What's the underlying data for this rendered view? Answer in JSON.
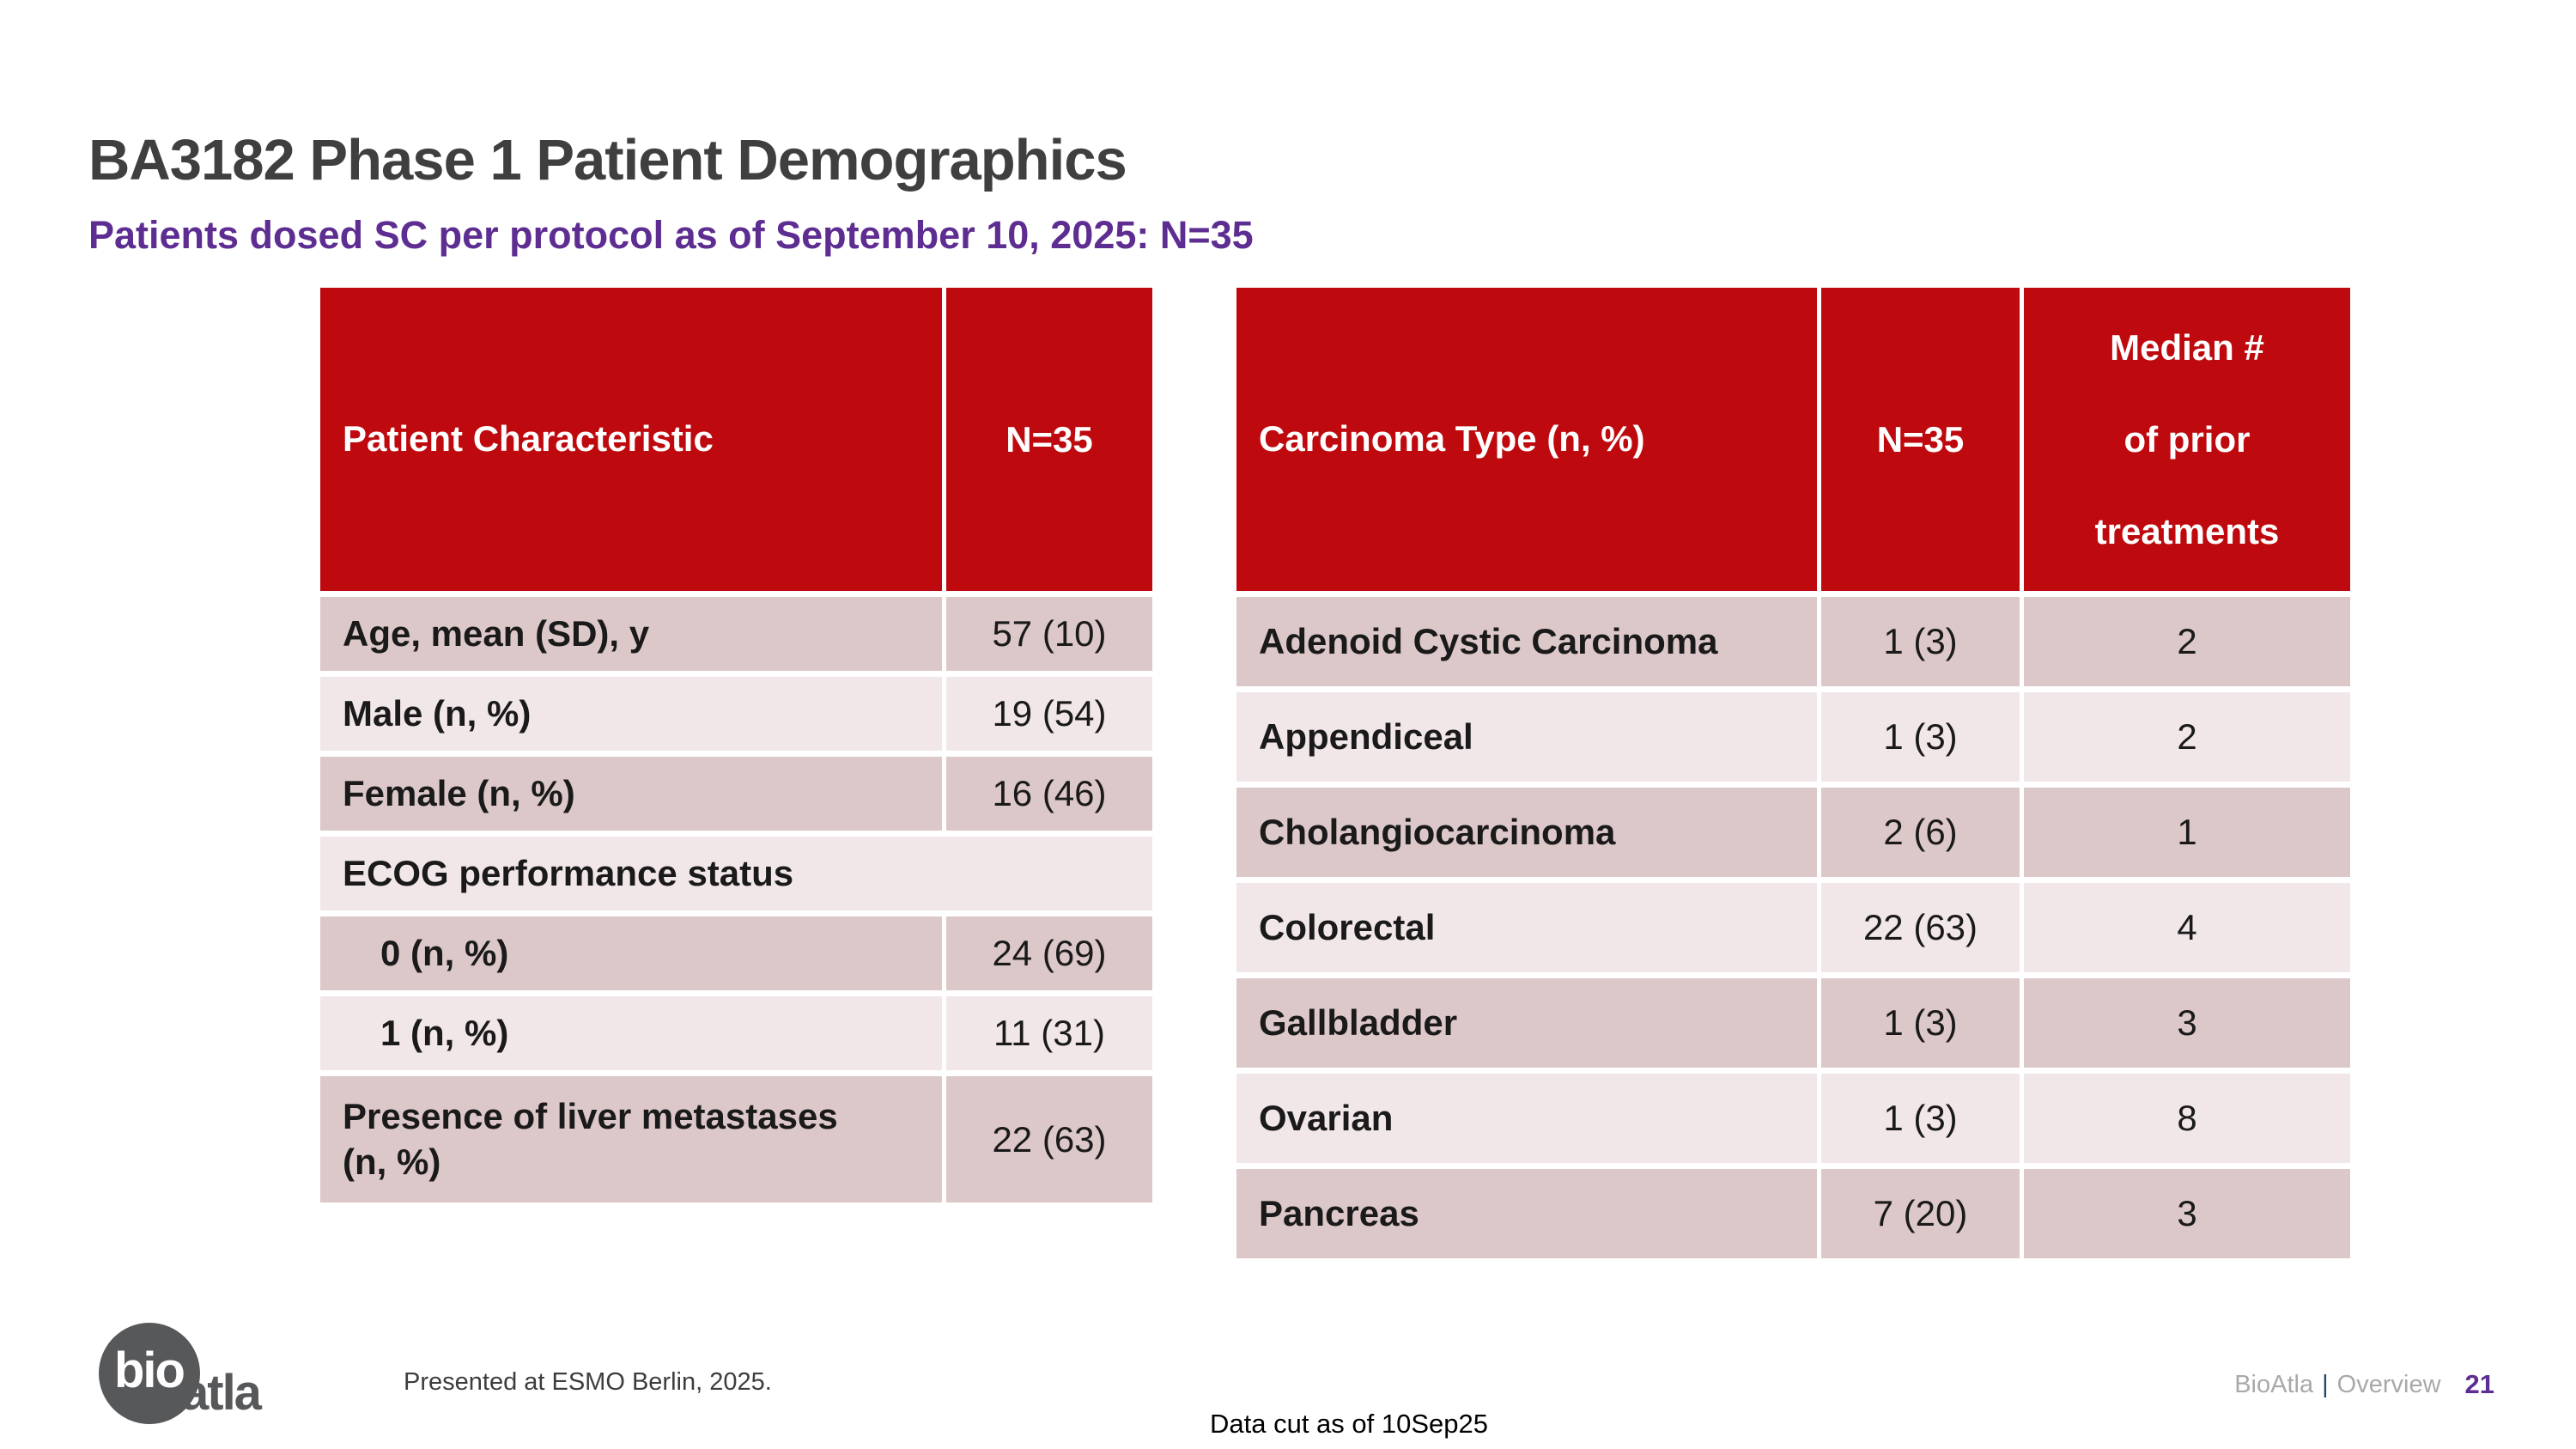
{
  "slide": {
    "title": "BA3182 Phase 1 Patient Demographics",
    "subtitle": "Patients dosed SC per protocol as of September 10, 2025: N=35"
  },
  "colors": {
    "header_red": "#be0a0e",
    "row_dark": "#ddc8c9",
    "row_light": "#f2e7e8",
    "title_gray": "#3f3f3f",
    "subtitle_purple": "#5e2d91",
    "footer_gray": "#a9a9a9",
    "pipe_blue": "#21486b",
    "page_purple": "#5e2d91",
    "logo_gray": "#57585a"
  },
  "left_table": {
    "headers": [
      "Patient Characteristic",
      "N=35"
    ],
    "rows": [
      {
        "label": "Age, mean (SD), y",
        "value": "57 (10)"
      },
      {
        "label": "Male (n, %)",
        "value": "19 (54)"
      },
      {
        "label": "Female (n, %)",
        "value": "16 (46)"
      },
      {
        "label": "ECOG performance status",
        "value": ""
      },
      {
        "label": "0 (n, %)",
        "value": "24 (69)"
      },
      {
        "label": "1 (n, %)",
        "value": "11 (31)"
      },
      {
        "label": "Presence of liver metastases\n(n, %)",
        "value": "22 (63)"
      }
    ]
  },
  "right_table": {
    "headers": [
      "Carcinoma Type (n, %)",
      "N=35",
      "Median #\nof prior\ntreatments"
    ],
    "rows": [
      {
        "type": "Adenoid Cystic Carcinoma",
        "n_pct": "1 (3)",
        "median_prior": "2"
      },
      {
        "type": "Appendiceal",
        "n_pct": "1 (3)",
        "median_prior": "2"
      },
      {
        "type": "Cholangiocarcinoma",
        "n_pct": "2 (6)",
        "median_prior": "1"
      },
      {
        "type": "Colorectal",
        "n_pct": "22 (63)",
        "median_prior": "4"
      },
      {
        "type": "Gallbladder",
        "n_pct": "1 (3)",
        "median_prior": "3"
      },
      {
        "type": "Ovarian",
        "n_pct": "1 (3)",
        "median_prior": "8"
      },
      {
        "type": "Pancreas",
        "n_pct": "7 (20)",
        "median_prior": "3"
      }
    ]
  },
  "footer": {
    "logo_bio": "bio",
    "logo_atla": "atla",
    "presented": "Presented at ESMO Berlin, 2025.",
    "data_cut": "Data cut as of 10Sep25",
    "brand": "BioAtla",
    "divider": "|",
    "section": "Overview",
    "page": "21"
  }
}
